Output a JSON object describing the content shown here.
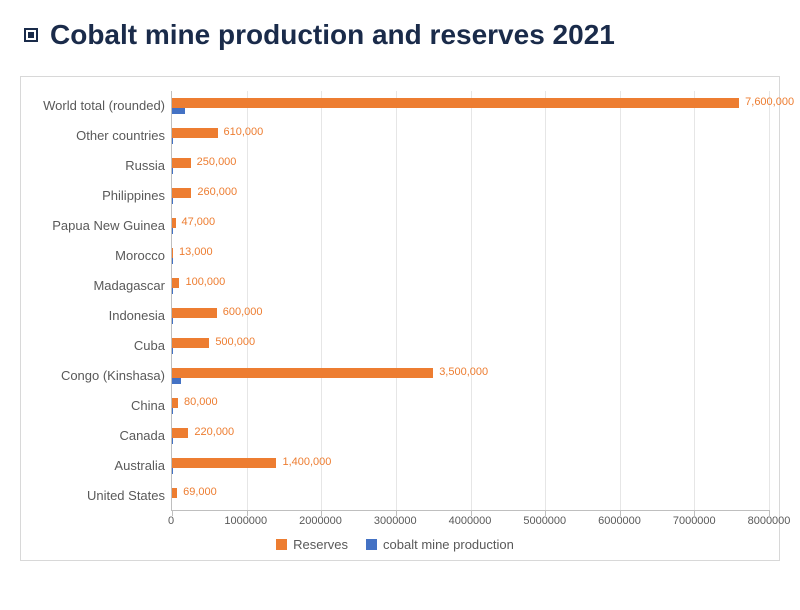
{
  "title": "Cobalt mine production and reserves 2021",
  "chart": {
    "type": "horizontal-bar",
    "background_color": "#ffffff",
    "border_color": "#d8d8d8",
    "axis_color": "#bfbfbf",
    "grid_color": "#e6e6e6",
    "label_color": "#595959",
    "reserves_color": "#ed7d31",
    "production_color": "#4472c4",
    "data_label_color": "#ed7d31",
    "title_color": "#1a2b4a",
    "title_fontsize": 28,
    "label_fontsize": 13,
    "data_label_fontsize": 11,
    "xlim": [
      0,
      8000000
    ],
    "xtick_step": 1000000,
    "xticks": [
      "0",
      "1000000",
      "2000000",
      "3000000",
      "4000000",
      "5000000",
      "6000000",
      "7000000",
      "8000000"
    ],
    "categories": [
      "World total (rounded)",
      "Other countries",
      "Russia",
      "Philippines",
      "Papua New Guinea",
      "Morocco",
      "Madagascar",
      "Indonesia",
      "Cuba",
      "Congo (Kinshasa)",
      "China",
      "Canada",
      "Australia",
      "United States"
    ],
    "reserves": [
      7600000,
      610000,
      250000,
      260000,
      47000,
      13000,
      100000,
      600000,
      500000,
      3500000,
      80000,
      220000,
      1400000,
      69000
    ],
    "reserves_labels": [
      "7,600,000",
      "610,000",
      "250,000",
      "260,000",
      "47,000",
      "13,000",
      "100,000",
      "600,000",
      "500,000",
      "3,500,000",
      "80,000",
      "220,000",
      "1,400,000",
      "69,000"
    ],
    "production": [
      170000,
      9000,
      7600,
      4500,
      3000,
      2300,
      2800,
      2100,
      3900,
      120000,
      2200,
      4300,
      5600,
      700
    ],
    "legend": {
      "reserves": "Reserves",
      "production": "cobalt mine production"
    }
  }
}
